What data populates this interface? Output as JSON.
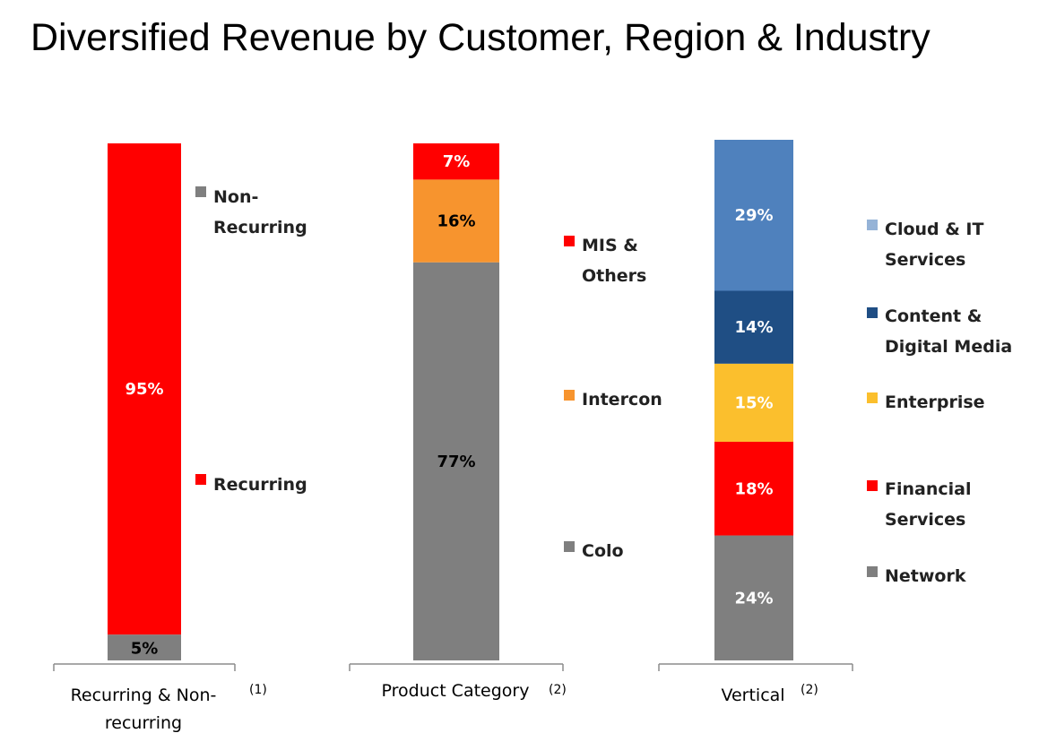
{
  "title": "Diversified Revenue by Customer, Region & Industry",
  "chart_data": {
    "type": "bar",
    "stacked": true,
    "unit": "%",
    "charts": [
      {
        "category": [
          "Recurring & Non-",
          "recurring"
        ],
        "footnote": "(1)",
        "segments": [
          {
            "name": "Non-Recurring",
            "legend_lines": [
              "Non-",
              "Recurring"
            ],
            "value": 5,
            "label": "5%",
            "color": "#7f7f7f",
            "label_color": "#000000"
          },
          {
            "name": "Recurring",
            "legend_lines": [
              "Recurring"
            ],
            "value": 95,
            "label": "95%",
            "color": "#ff0000",
            "label_color": "#ffffff"
          }
        ]
      },
      {
        "category": [
          "Product Category"
        ],
        "footnote": "(2)",
        "segments": [
          {
            "name": "Colo",
            "legend_lines": [
              "Colo"
            ],
            "value": 77,
            "label": "77%",
            "color": "#7f7f7f",
            "label_color": "#000000"
          },
          {
            "name": "Intercon",
            "legend_lines": [
              "Intercon"
            ],
            "value": 16,
            "label": "16%",
            "color": "#f7942e",
            "label_color": "#000000"
          },
          {
            "name": "MIS & Others",
            "legend_lines": [
              "MIS &",
              "Others"
            ],
            "value": 7,
            "label": "7%",
            "color": "#ff0000",
            "label_color": "#ffffff"
          }
        ]
      },
      {
        "category": [
          "Vertical"
        ],
        "footnote": "(2)",
        "segments": [
          {
            "name": "Network",
            "legend_lines": [
              "Network"
            ],
            "value": 24,
            "label": "24%",
            "color": "#7f7f7f",
            "label_color": "#ffffff"
          },
          {
            "name": "Financial Services",
            "legend_lines": [
              "Financial",
              "Services"
            ],
            "value": 18,
            "label": "18%",
            "color": "#ff0000",
            "label_color": "#ffffff"
          },
          {
            "name": "Enterprise",
            "legend_lines": [
              "Enterprise"
            ],
            "value": 15,
            "label": "15%",
            "color": "#fbbf2d",
            "label_color": "#ffffff"
          },
          {
            "name": "Content & Digital Media",
            "legend_lines": [
              "Content &",
              "Digital Media"
            ],
            "value": 14,
            "label": "14%",
            "color": "#1f4e84",
            "label_color": "#ffffff"
          },
          {
            "name": "Cloud & IT Services",
            "legend_lines": [
              "Cloud & IT",
              "Services"
            ],
            "value": 29,
            "label": "29%",
            "color": "#4f81bd",
            "label_color": "#ffffff"
          }
        ]
      }
    ]
  },
  "legend_colors": {
    "Recurring": "#ff0000",
    "Non-Recurring": "#7f7f7f",
    "MIS & Others": "#ff0000",
    "Intercon": "#f7942e",
    "Colo": "#7f7f7f",
    "Cloud & IT Services": "#95b3d7",
    "Content & Digital Media": "#1f4e84",
    "Enterprise": "#fbbf2d",
    "Financial Services": "#ff0000",
    "Network": "#7f7f7f"
  }
}
